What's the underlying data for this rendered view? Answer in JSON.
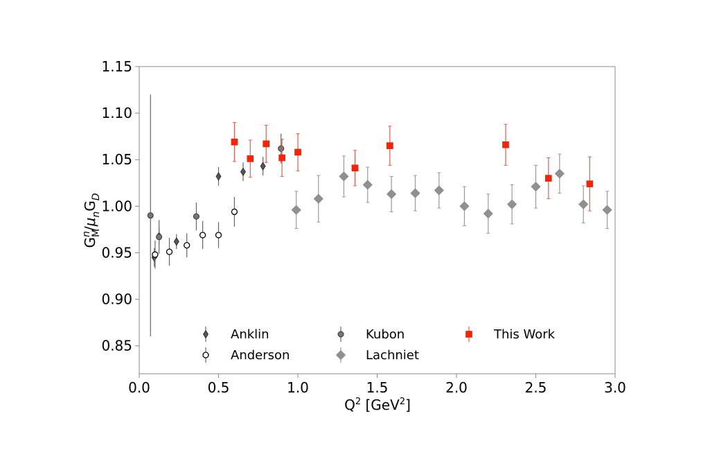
{
  "chart_data": {
    "type": "scatter",
    "title": "",
    "xlabel": {
      "base": "Q",
      "sup": "2",
      "unit_open": " [GeV",
      "unit_sup": "2",
      "unit_close": "]"
    },
    "ylabel": {
      "g1": "G",
      "g1_sub": "M",
      "g1_sup": "n",
      "slash": "/",
      "mu": "μ",
      "mu_sub": "n",
      "g2": "G",
      "g2_sub": "D"
    },
    "xlim": [
      0.0,
      3.0
    ],
    "ylim": [
      0.82,
      1.15
    ],
    "xticks": [
      "0.0",
      "0.5",
      "1.0",
      "1.5",
      "2.0",
      "2.5",
      "3.0"
    ],
    "yticks": [
      "0.85",
      "0.90",
      "0.95",
      "1.00",
      "1.05",
      "1.10",
      "1.15"
    ],
    "grid": false,
    "legend_position": "bottom",
    "series": [
      {
        "name": "Anklin",
        "marker": "thin-diamond",
        "color": "#555555",
        "fill": "#555555",
        "points": [
          {
            "x": 0.095,
            "y": 0.945,
            "err": 0.01
          },
          {
            "x": 0.125,
            "y": 0.968,
            "err": 0.01
          },
          {
            "x": 0.235,
            "y": 0.962,
            "err": 0.008
          },
          {
            "x": 0.5,
            "y": 1.032,
            "err": 0.01
          },
          {
            "x": 0.655,
            "y": 1.037,
            "err": 0.01
          },
          {
            "x": 0.78,
            "y": 1.043,
            "err": 0.01
          }
        ]
      },
      {
        "name": "Anderson",
        "marker": "open-circle",
        "color": "#000000",
        "fill": "none",
        "points": [
          {
            "x": 0.1,
            "y": 0.948,
            "err": 0.015
          },
          {
            "x": 0.19,
            "y": 0.951,
            "err": 0.015
          },
          {
            "x": 0.3,
            "y": 0.958,
            "err": 0.013
          },
          {
            "x": 0.4,
            "y": 0.969,
            "err": 0.015
          },
          {
            "x": 0.5,
            "y": 0.969,
            "err": 0.014
          },
          {
            "x": 0.6,
            "y": 0.994,
            "err": 0.016
          }
        ]
      },
      {
        "name": "Kubon",
        "marker": "circle",
        "color": "#333333",
        "fill": "#777777",
        "points": [
          {
            "x": 0.071,
            "y": 0.99,
            "err": 0.13
          },
          {
            "x": 0.125,
            "y": 0.967,
            "err": 0.018
          },
          {
            "x": 0.36,
            "y": 0.989,
            "err": 0.015
          },
          {
            "x": 0.894,
            "y": 1.062,
            "err": 0.016
          }
        ]
      },
      {
        "name": "Lachniet",
        "marker": "diamond",
        "color": "#999999",
        "fill": "#909090",
        "points": [
          {
            "x": 0.99,
            "y": 0.996,
            "err": 0.02
          },
          {
            "x": 1.13,
            "y": 1.008,
            "err": 0.025
          },
          {
            "x": 1.29,
            "y": 1.032,
            "err": 0.022
          },
          {
            "x": 1.44,
            "y": 1.023,
            "err": 0.019
          },
          {
            "x": 1.59,
            "y": 1.013,
            "err": 0.019
          },
          {
            "x": 1.74,
            "y": 1.014,
            "err": 0.019
          },
          {
            "x": 1.89,
            "y": 1.017,
            "err": 0.019
          },
          {
            "x": 2.05,
            "y": 1.0,
            "err": 0.021
          },
          {
            "x": 2.2,
            "y": 0.992,
            "err": 0.021
          },
          {
            "x": 2.35,
            "y": 1.002,
            "err": 0.021
          },
          {
            "x": 2.5,
            "y": 1.021,
            "err": 0.023
          },
          {
            "x": 2.65,
            "y": 1.035,
            "err": 0.021
          },
          {
            "x": 2.8,
            "y": 1.002,
            "err": 0.02
          },
          {
            "x": 2.95,
            "y": 0.996,
            "err": 0.02
          }
        ]
      },
      {
        "name": "This Work",
        "marker": "square",
        "color": "#ee3322",
        "fill": "#ff2200",
        "points": [
          {
            "x": 0.6,
            "y": 1.069,
            "err": 0.021
          },
          {
            "x": 0.7,
            "y": 1.051,
            "err": 0.02
          },
          {
            "x": 0.8,
            "y": 1.067,
            "err": 0.02
          },
          {
            "x": 0.9,
            "y": 1.052,
            "err": 0.02
          },
          {
            "x": 1.0,
            "y": 1.058,
            "err": 0.02
          },
          {
            "x": 1.36,
            "y": 1.041,
            "err": 0.019
          },
          {
            "x": 1.58,
            "y": 1.065,
            "err": 0.021
          },
          {
            "x": 2.31,
            "y": 1.066,
            "err": 0.022
          },
          {
            "x": 2.58,
            "y": 1.03,
            "err": 0.022
          },
          {
            "x": 2.84,
            "y": 1.024,
            "err": 0.029
          }
        ]
      }
    ]
  }
}
